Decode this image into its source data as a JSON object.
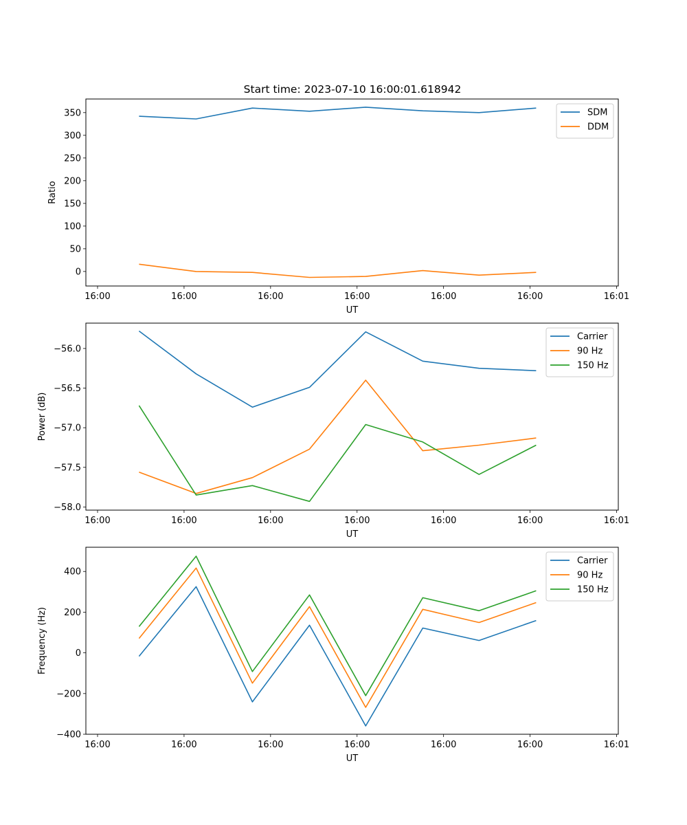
{
  "figure_title": "Start time: 2023-07-10 16:00:01.618942",
  "chart_data": [
    {
      "type": "line",
      "title": "Start time: 2023-07-10 16:00:01.618942",
      "xlabel": "UT",
      "ylabel": "Ratio",
      "x_units": "seconds after 16:00:00",
      "x": [
        4.8,
        11.4,
        17.9,
        24.5,
        31.0,
        37.6,
        44.1,
        50.7
      ],
      "xlim": [
        -1.35,
        60.2
      ],
      "xticks": [
        0,
        10,
        20,
        30,
        40,
        50,
        60
      ],
      "xtick_labels": [
        "16:00",
        "16:00",
        "16:00",
        "16:00",
        "16:00",
        "16:00",
        "16:01"
      ],
      "ylim": [
        -32,
        380
      ],
      "yticks": [
        0,
        50,
        100,
        150,
        200,
        250,
        300,
        350
      ],
      "ytick_labels": [
        "0",
        "50",
        "100",
        "150",
        "200",
        "250",
        "300",
        "350"
      ],
      "grid": false,
      "legend": "top-right",
      "series": [
        {
          "name": "SDM",
          "color": "#1f77b4",
          "values": [
            342,
            336,
            360,
            353,
            362,
            354,
            350,
            360
          ]
        },
        {
          "name": "DDM",
          "color": "#ff7f0e",
          "values": [
            16,
            0,
            -2,
            -13,
            -11,
            2,
            -8,
            -2
          ]
        }
      ]
    },
    {
      "type": "line",
      "title": "",
      "xlabel": "UT",
      "ylabel": "Power (dB)",
      "x_units": "seconds after 16:00:00",
      "x": [
        4.8,
        11.4,
        17.9,
        24.5,
        31.0,
        37.6,
        44.1,
        50.7
      ],
      "xlim": [
        -1.35,
        60.2
      ],
      "xticks": [
        0,
        10,
        20,
        30,
        40,
        50,
        60
      ],
      "xtick_labels": [
        "16:00",
        "16:00",
        "16:00",
        "16:00",
        "16:00",
        "16:00",
        "16:01"
      ],
      "ylim": [
        -58.04,
        -55.68
      ],
      "yticks": [
        -58.0,
        -57.5,
        -57.0,
        -56.5,
        -56.0
      ],
      "ytick_labels": [
        "−58.0",
        "−57.5",
        "−57.0",
        "−56.5",
        "−56.0"
      ],
      "grid": false,
      "legend": "top-right",
      "series": [
        {
          "name": "Carrier",
          "color": "#1f77b4",
          "values": [
            -55.78,
            -56.32,
            -56.74,
            -56.49,
            -55.79,
            -56.16,
            -56.25,
            -56.28
          ]
        },
        {
          "name": "90 Hz",
          "color": "#ff7f0e",
          "values": [
            -57.56,
            -57.83,
            -57.63,
            -57.27,
            -56.4,
            -57.29,
            -57.22,
            -57.13
          ]
        },
        {
          "name": "150 Hz",
          "color": "#2ca02c",
          "values": [
            -56.72,
            -57.85,
            -57.73,
            -57.93,
            -56.96,
            -57.18,
            -57.59,
            -57.22
          ]
        }
      ]
    },
    {
      "type": "line",
      "title": "",
      "xlabel": "UT",
      "ylabel": "Frequency (Hz)",
      "x_units": "seconds after 16:00:00",
      "x": [
        4.8,
        11.4,
        17.9,
        24.5,
        31.0,
        37.6,
        44.1,
        50.7
      ],
      "xlim": [
        -1.35,
        60.2
      ],
      "xticks": [
        0,
        10,
        20,
        30,
        40,
        50,
        60
      ],
      "xtick_labels": [
        "16:00",
        "16:00",
        "16:00",
        "16:00",
        "16:00",
        "16:00",
        "16:01"
      ],
      "ylim": [
        -400,
        519
      ],
      "yticks": [
        -400,
        -200,
        0,
        200,
        400
      ],
      "ytick_labels": [
        "−400",
        "−200",
        "0",
        "200",
        "400"
      ],
      "grid": false,
      "legend": "top-right",
      "series": [
        {
          "name": "Carrier",
          "color": "#1f77b4",
          "values": [
            -17,
            325,
            -241,
            136,
            -359,
            122,
            61,
            159
          ]
        },
        {
          "name": "90 Hz",
          "color": "#ff7f0e",
          "values": [
            71,
            417,
            -149,
            227,
            -268,
            214,
            149,
            247
          ]
        },
        {
          "name": "150 Hz",
          "color": "#2ca02c",
          "values": [
            129,
            475,
            -92,
            285,
            -210,
            271,
            207,
            305
          ]
        }
      ]
    }
  ]
}
